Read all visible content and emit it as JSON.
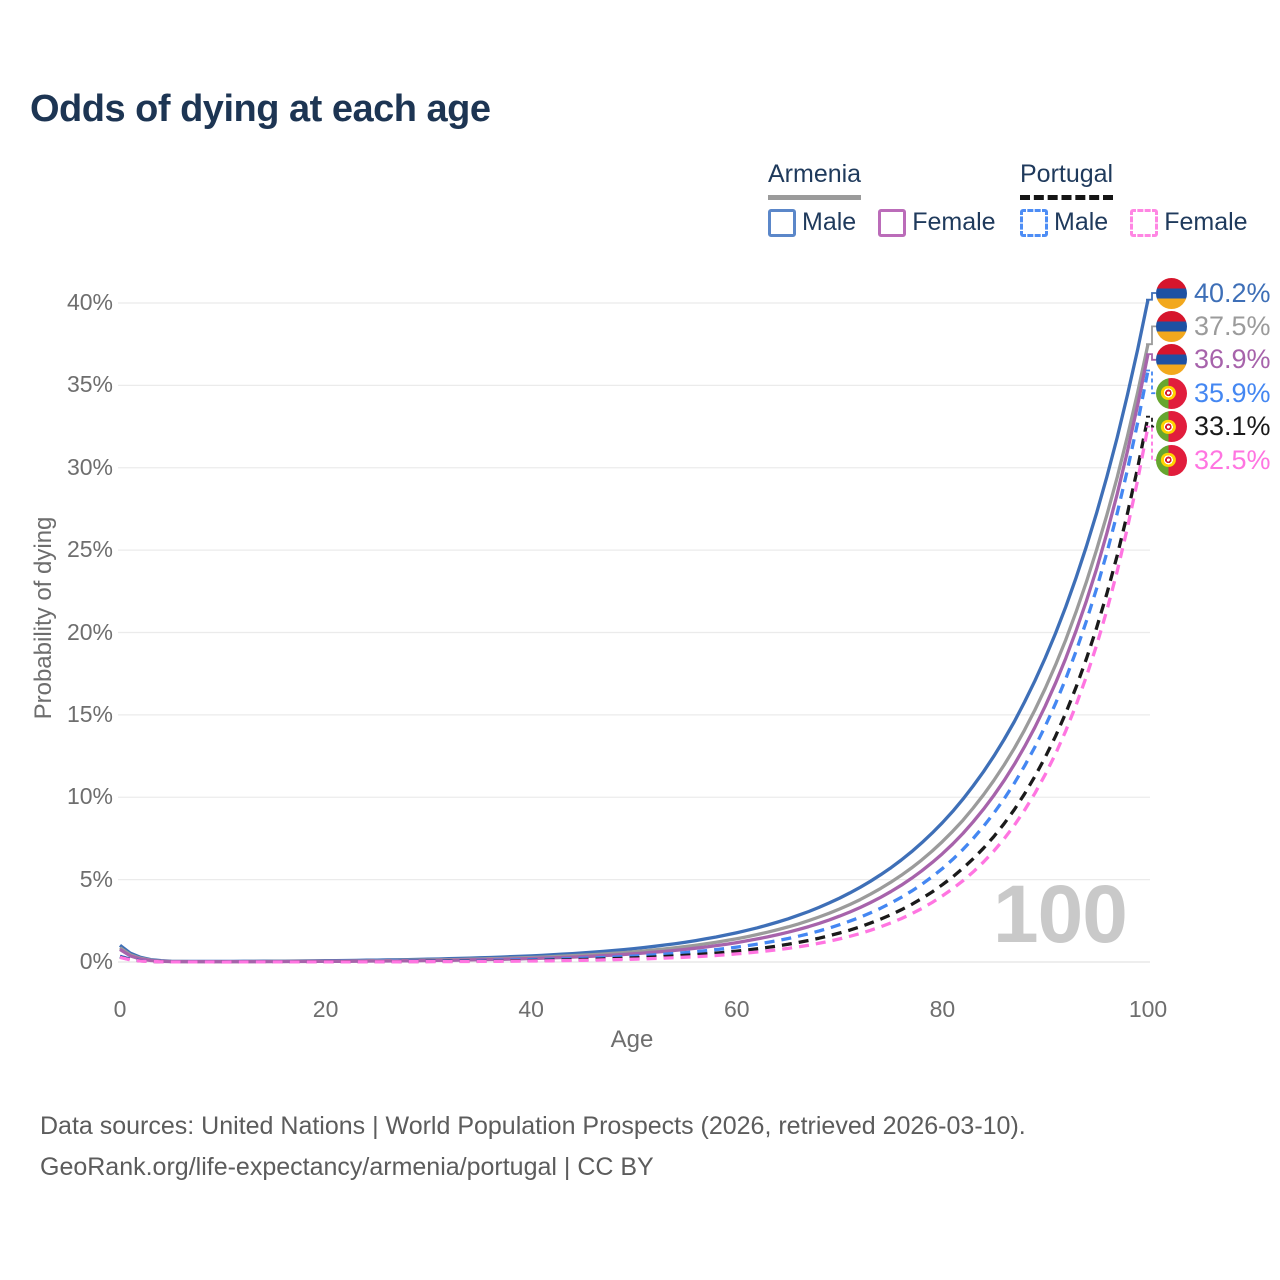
{
  "page": {
    "title": "Odds of dying at each age"
  },
  "legend": {
    "groups": [
      {
        "label": "Armenia",
        "line_style": "solid",
        "items": [
          {
            "label": "Male"
          },
          {
            "label": "Female"
          }
        ]
      },
      {
        "label": "Portugal",
        "line_style": "dashed",
        "items": [
          {
            "label": "Male"
          },
          {
            "label": "Female"
          }
        ]
      }
    ]
  },
  "footer": {
    "line1": "Data sources: United Nations | World Population Prospects (2026, retrieved 2026-03-10).",
    "line2": "GeoRank.org/life-expectancy/armenia/portugal | CC BY"
  },
  "chart_data": {
    "type": "line",
    "title": "Odds of dying at each age",
    "xlabel": "Age",
    "ylabel": "Probability of dying",
    "xlim": [
      0,
      100
    ],
    "ylim": [
      0,
      40
    ],
    "x_ticks": [
      0,
      20,
      40,
      60,
      80,
      100
    ],
    "y_ticks": [
      0,
      5,
      10,
      15,
      20,
      25,
      30,
      35,
      40
    ],
    "y_tick_suffix": "%",
    "grid": "horizontal",
    "legend_position": "top-right",
    "watermark": "100",
    "ages": [
      0,
      5,
      10,
      15,
      20,
      25,
      30,
      35,
      40,
      45,
      50,
      55,
      60,
      65,
      70,
      75,
      80,
      85,
      90,
      95,
      100
    ],
    "series": [
      {
        "name": "Armenia Male",
        "country": "Armenia",
        "sex": "Male",
        "flag": "am",
        "color": "#3e6fb7",
        "dashed": false,
        "end_label": "40.2%",
        "values": [
          1.016,
          0.04,
          0.036,
          0.053,
          0.078,
          0.116,
          0.171,
          0.253,
          0.373,
          0.551,
          0.815,
          1.203,
          1.777,
          2.625,
          3.877,
          5.726,
          8.457,
          12.491,
          18.45,
          27.251,
          40.2
        ]
      },
      {
        "name": "Armenia Total",
        "country": "Armenia",
        "sex": "Total",
        "flag": "am",
        "color": "#9b9b9b",
        "dashed": false,
        "end_label": "37.5%",
        "values": [
          0.86,
          0.029,
          0.023,
          0.035,
          0.053,
          0.08,
          0.121,
          0.182,
          0.274,
          0.413,
          0.622,
          0.938,
          1.415,
          2.133,
          3.215,
          4.847,
          7.306,
          11.014,
          16.603,
          25.027,
          37.5
        ]
      },
      {
        "name": "Armenia Female",
        "country": "Armenia",
        "sex": "Female",
        "flag": "am",
        "color": "#a763ab",
        "dashed": false,
        "end_label": "36.9%",
        "values": [
          0.757,
          0.022,
          0.016,
          0.025,
          0.038,
          0.058,
          0.089,
          0.138,
          0.211,
          0.325,
          0.499,
          0.767,
          1.179,
          1.811,
          2.784,
          4.278,
          6.574,
          10.104,
          15.527,
          23.861,
          36.9
        ]
      },
      {
        "name": "Portugal Male",
        "country": "Portugal",
        "sex": "Male",
        "flag": "pt",
        "color": "#4487f2",
        "dashed": true,
        "end_label": "35.9%",
        "values": [
          0.354,
          0.011,
          0.009,
          0.014,
          0.023,
          0.036,
          0.057,
          0.091,
          0.143,
          0.227,
          0.36,
          0.57,
          0.902,
          1.428,
          2.262,
          3.581,
          5.672,
          9.032,
          14.307,
          22.663,
          35.9
        ]
      },
      {
        "name": "Portugal Total",
        "country": "Portugal",
        "sex": "Total",
        "flag": "pt",
        "color": "#1a1a1a",
        "dashed": true,
        "end_label": "33.1%",
        "values": [
          0.302,
          0.008,
          0.005,
          0.008,
          0.013,
          0.021,
          0.035,
          0.057,
          0.093,
          0.151,
          0.247,
          0.404,
          0.659,
          1.077,
          1.758,
          2.871,
          4.69,
          7.611,
          12.423,
          20.278,
          33.1
        ]
      },
      {
        "name": "Portugal Female",
        "country": "Portugal",
        "sex": "Female",
        "flag": "pt",
        "color": "#ff75e1",
        "dashed": true,
        "end_label": "32.5%",
        "values": [
          0.281,
          0.006,
          0.003,
          0.004,
          0.007,
          0.012,
          0.021,
          0.035,
          0.06,
          0.101,
          0.171,
          0.29,
          0.49,
          0.828,
          1.402,
          2.371,
          4.01,
          6.73,
          11.373,
          19.226,
          32.5
        ]
      }
    ]
  }
}
